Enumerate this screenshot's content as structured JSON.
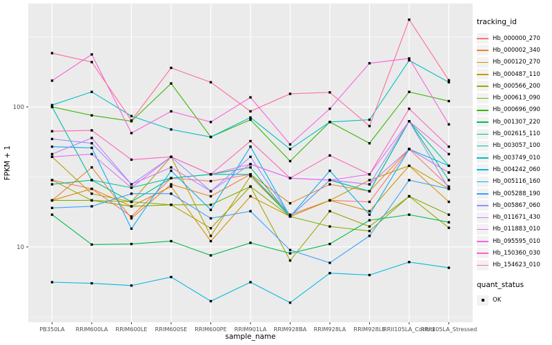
{
  "figure": {
    "background": "#FFFFFF",
    "panel_background": "#EBEBEB",
    "grid_color": "#FFFFFF",
    "tick_label_color": "#4D4D4D",
    "axis_title_color": "#000000",
    "point_color": "#000000"
  },
  "legend": {
    "tracking_title": "tracking_id",
    "quant_title": "quant_status",
    "quant_ok_label": "OK",
    "quant_marker": "black-square"
  },
  "chart_data": {
    "type": "line",
    "title": "",
    "xlabel": "sample_name",
    "ylabel": "FPKM + 1",
    "y_scale": "log10",
    "y_ticks": [
      10,
      100
    ],
    "y_minor_breaks": [
      3.162,
      31.62,
      316.2
    ],
    "ylim": [
      2.9,
      548
    ],
    "grid": true,
    "legend_position": "right",
    "marker": "black-square",
    "categories": [
      "PB350LA",
      "RRIM600LA",
      "RRIM600LE",
      "RRIM600SE",
      "RRIM600PE",
      "RRIM901LA",
      "RRIM928BA",
      "RRIM928LA",
      "RRIM928LE",
      "RRII105LA_Control",
      "RRII105LA_Stressed"
    ],
    "series": [
      {
        "name": "Hb_000000_270",
        "color": "#F8766D",
        "values": [
          30,
          26,
          16.5,
          31,
          29.5,
          33,
          17,
          21.5,
          21,
          50,
          27
        ]
      },
      {
        "name": "Hb_000002_340",
        "color": "#EA8331",
        "values": [
          21.5,
          37,
          16,
          28,
          23,
          33,
          20.5,
          28,
          25,
          50,
          34
        ]
      },
      {
        "name": "Hb_000120_270",
        "color": "#D89000",
        "values": [
          21.5,
          26,
          19.5,
          27,
          11,
          23,
          16.5,
          21.5,
          18,
          38,
          21
        ]
      },
      {
        "name": "Hb_000487_110",
        "color": "#C09B00",
        "values": [
          44,
          24,
          21,
          44,
          12,
          32,
          16.5,
          21.5,
          30,
          38,
          26
        ]
      },
      {
        "name": "Hb_000566_200",
        "color": "#A3A500",
        "values": [
          30,
          21.5,
          21,
          20,
          13.6,
          27,
          8,
          18,
          14,
          23,
          13.7
        ]
      },
      {
        "name": "Hb_000613_090",
        "color": "#7CAE00",
        "values": [
          21.5,
          21.5,
          19.5,
          20,
          20,
          27,
          16.5,
          14,
          13,
          23,
          17
        ]
      },
      {
        "name": "Hb_000696_090",
        "color": "#39B600",
        "values": [
          100,
          87,
          79,
          147,
          61,
          81,
          41,
          78,
          55,
          128,
          110
        ]
      },
      {
        "name": "Hb_001307_220",
        "color": "#00BB4E",
        "values": [
          17,
          10.4,
          10.5,
          11,
          8.7,
          10.7,
          9,
          10.5,
          15.5,
          17,
          15
        ]
      },
      {
        "name": "Hb_002615_110",
        "color": "#00BF7D",
        "values": [
          28,
          30,
          21,
          31,
          33,
          37,
          16.5,
          30,
          25,
          79,
          30
        ]
      },
      {
        "name": "Hb_003057_100",
        "color": "#00C1A3",
        "values": [
          100,
          30,
          26.5,
          31,
          33,
          33,
          16.5,
          30,
          25,
          79,
          38
        ]
      },
      {
        "name": "Hb_003749_010",
        "color": "#00BFC4",
        "values": [
          103,
          128,
          86,
          69,
          61,
          84,
          50,
          78,
          81,
          215,
          150
        ]
      },
      {
        "name": "Hb_004242_060",
        "color": "#00BAE0",
        "values": [
          5.6,
          5.5,
          5.3,
          6.1,
          4.1,
          5.6,
          4.0,
          6.5,
          6.3,
          7.8,
          7.1
        ]
      },
      {
        "name": "Hb_005116_160",
        "color": "#00B0F6",
        "values": [
          52,
          51,
          13.5,
          35,
          18.4,
          52,
          16.5,
          35,
          17,
          50,
          38
        ]
      },
      {
        "name": "Hb_005288_190",
        "color": "#35A2FF",
        "values": [
          19,
          19.5,
          24,
          24,
          16,
          18,
          9.5,
          7.7,
          12,
          30,
          26
        ]
      },
      {
        "name": "Hb_005867_060",
        "color": "#9590FF",
        "values": [
          59,
          55,
          28,
          44,
          25,
          44,
          16.5,
          30,
          28,
          79,
          26
        ]
      },
      {
        "name": "Hb_011671_430",
        "color": "#C77CFF",
        "values": [
          46,
          60,
          28,
          37,
          25,
          39,
          31,
          30,
          28,
          50,
          34
        ]
      },
      {
        "name": "Hb_011883_010",
        "color": "#E76BF3",
        "values": [
          44,
          46,
          26.5,
          44,
          33,
          39,
          31,
          30,
          33,
          79,
          46
        ]
      },
      {
        "name": "Hb_095595_010",
        "color": "#FA62DB",
        "values": [
          154,
          237,
          65,
          93,
          78,
          117,
          54,
          97,
          205,
          222,
          75
        ]
      },
      {
        "name": "Hb_150360_030",
        "color": "#FF62BC",
        "values": [
          67,
          68,
          42,
          44,
          33,
          57,
          31,
          45,
          33,
          97,
          52
        ]
      },
      {
        "name": "Hb_154623_010",
        "color": "#FF6A98",
        "values": [
          242,
          209,
          80,
          190,
          150,
          93,
          124,
          127,
          73,
          420,
          155
        ]
      }
    ]
  }
}
